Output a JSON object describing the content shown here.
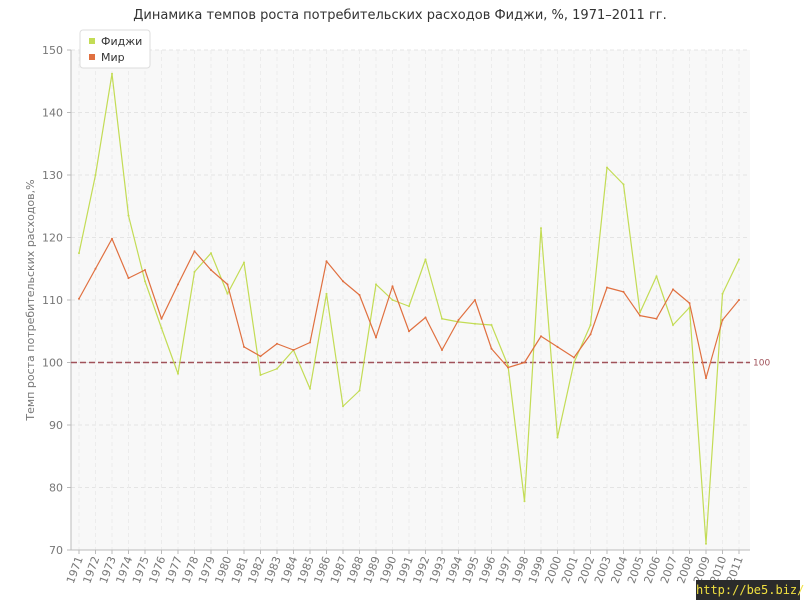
{
  "chart_data": {
    "type": "line",
    "title": "Динамика темпов роста потребительских расходов Фиджи, %, 1971–2011 гг.",
    "ylabel": "Темп роста потребительских расходов,%",
    "xlabel": "",
    "ylim": [
      70,
      150
    ],
    "yticks": [
      70,
      80,
      90,
      100,
      110,
      120,
      130,
      140,
      150
    ],
    "grid": true,
    "legend_position": "top-left",
    "categories": [
      "1971",
      "1972",
      "1973",
      "1974",
      "1975",
      "1976",
      "1977",
      "1978",
      "1979",
      "1980",
      "1981",
      "1982",
      "1983",
      "1984",
      "1985",
      "1986",
      "1987",
      "1988",
      "1989",
      "1990",
      "1991",
      "1992",
      "1993",
      "1994",
      "1995",
      "1996",
      "1997",
      "1998",
      "1999",
      "2000",
      "2001",
      "2002",
      "2003",
      "2004",
      "2005",
      "2006",
      "2007",
      "2008",
      "2009",
      "2010",
      "2011"
    ],
    "series": [
      {
        "name": "Фиджи",
        "color": "#c3dc55",
        "values": [
          117.5,
          130,
          146.2,
          123.5,
          113,
          105.5,
          98.2,
          114.5,
          117.5,
          111,
          116,
          98,
          99,
          102,
          95.8,
          111,
          93,
          95.5,
          112.5,
          110,
          109,
          116.5,
          107,
          106.5,
          106.2,
          106,
          99.5,
          77.8,
          121.5,
          88,
          100,
          106,
          131.2,
          128.5,
          108,
          113.8,
          106,
          108.8,
          71,
          111,
          116.5
        ]
      },
      {
        "name": "Мир",
        "color": "#e07040",
        "values": [
          110.2,
          115,
          119.8,
          113.5,
          114.8,
          107,
          112.5,
          117.8,
          114.8,
          112.5,
          102.5,
          101,
          103,
          102,
          103.2,
          116.2,
          113,
          110.8,
          104,
          112.2,
          105,
          107.2,
          102,
          106.8,
          110,
          102.2,
          99.2,
          100,
          104.2,
          102.5,
          100.8,
          104.5,
          112,
          111.3,
          107.5,
          107,
          111.7,
          109.5,
          97.5,
          106.8,
          110
        ]
      }
    ],
    "reference_line": {
      "value": 100,
      "label": "100",
      "color": "#a0525a"
    }
  },
  "watermark": {
    "text": "http://be5.biz/"
  }
}
